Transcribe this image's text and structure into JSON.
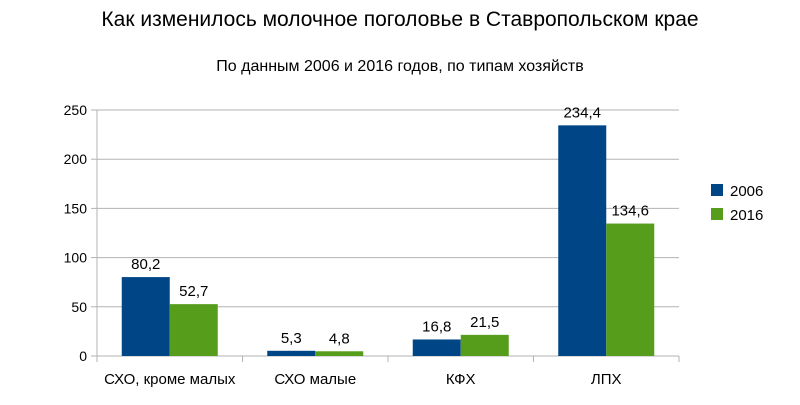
{
  "chart_data": {
    "type": "bar",
    "title": "Как изменилось молочное поголовье в Ставропольском крае",
    "subtitle": "По данным 2006 и 2016 годов, по типам хозяйств",
    "categories": [
      "СХО, кроме малых",
      "СХО малые",
      "КФХ",
      "ЛПХ"
    ],
    "series": [
      {
        "name": "2006",
        "values": [
          80.2,
          5.3,
          16.8,
          234.4
        ],
        "labels": [
          "80,2",
          "5,3",
          "16,8",
          "234,4"
        ],
        "color": "#004586"
      },
      {
        "name": "2016",
        "values": [
          52.7,
          4.8,
          21.5,
          134.6
        ],
        "labels": [
          "52,7",
          "4,8",
          "21,5",
          "134,6"
        ],
        "color": "#579d1c"
      }
    ],
    "ylim": [
      0,
      250
    ],
    "yticks": [
      0,
      50,
      100,
      150,
      200,
      250
    ],
    "grid": true,
    "legend_position": "right",
    "xlabel": "",
    "ylabel": ""
  }
}
